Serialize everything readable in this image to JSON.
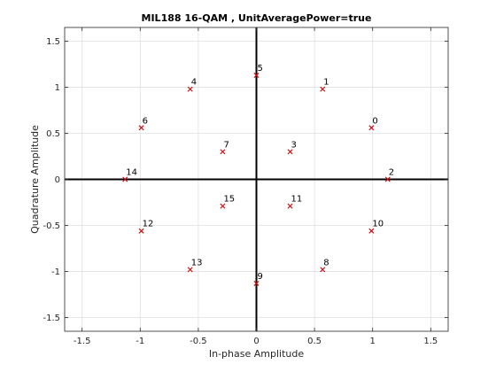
{
  "chart_data": {
    "type": "scatter",
    "title": "MIL188 16-QAM , UnitAveragePower=true",
    "xlabel": "In-phase Amplitude",
    "ylabel": "Quadrature Amplitude",
    "xlim": [
      -1.65,
      1.65
    ],
    "ylim": [
      -1.65,
      1.65
    ],
    "xticks": [
      -1.5,
      -1,
      -0.5,
      0,
      0.5,
      1,
      1.5
    ],
    "xtick_labels": [
      "-1.5",
      "-1",
      "-0.5",
      "0",
      "0.5",
      "1",
      "1.5"
    ],
    "yticks": [
      -1.5,
      -1,
      -0.5,
      0,
      0.5,
      1,
      1.5
    ],
    "ytick_labels": [
      "-1.5",
      "-1",
      "-0.5",
      "0",
      "0.5",
      "1",
      "1.5"
    ],
    "grid": true,
    "marker": "x",
    "marker_color": "#cc0000",
    "points": [
      {
        "label": "0",
        "x": 0.99,
        "y": 0.56
      },
      {
        "label": "1",
        "x": 0.57,
        "y": 0.98
      },
      {
        "label": "2",
        "x": 1.13,
        "y": 0.0
      },
      {
        "label": "3",
        "x": 0.29,
        "y": 0.3
      },
      {
        "label": "4",
        "x": -0.57,
        "y": 0.98
      },
      {
        "label": "5",
        "x": 0.0,
        "y": 1.13
      },
      {
        "label": "6",
        "x": -0.99,
        "y": 0.56
      },
      {
        "label": "7",
        "x": -0.29,
        "y": 0.3
      },
      {
        "label": "8",
        "x": 0.57,
        "y": -0.98
      },
      {
        "label": "9",
        "x": 0.0,
        "y": -1.13
      },
      {
        "label": "10",
        "x": 0.99,
        "y": -0.56
      },
      {
        "label": "11",
        "x": 0.29,
        "y": -0.29
      },
      {
        "label": "12",
        "x": -0.99,
        "y": -0.56
      },
      {
        "label": "13",
        "x": -0.57,
        "y": -0.98
      },
      {
        "label": "14",
        "x": -1.13,
        "y": 0.0
      },
      {
        "label": "15",
        "x": -0.29,
        "y": -0.29
      }
    ]
  }
}
